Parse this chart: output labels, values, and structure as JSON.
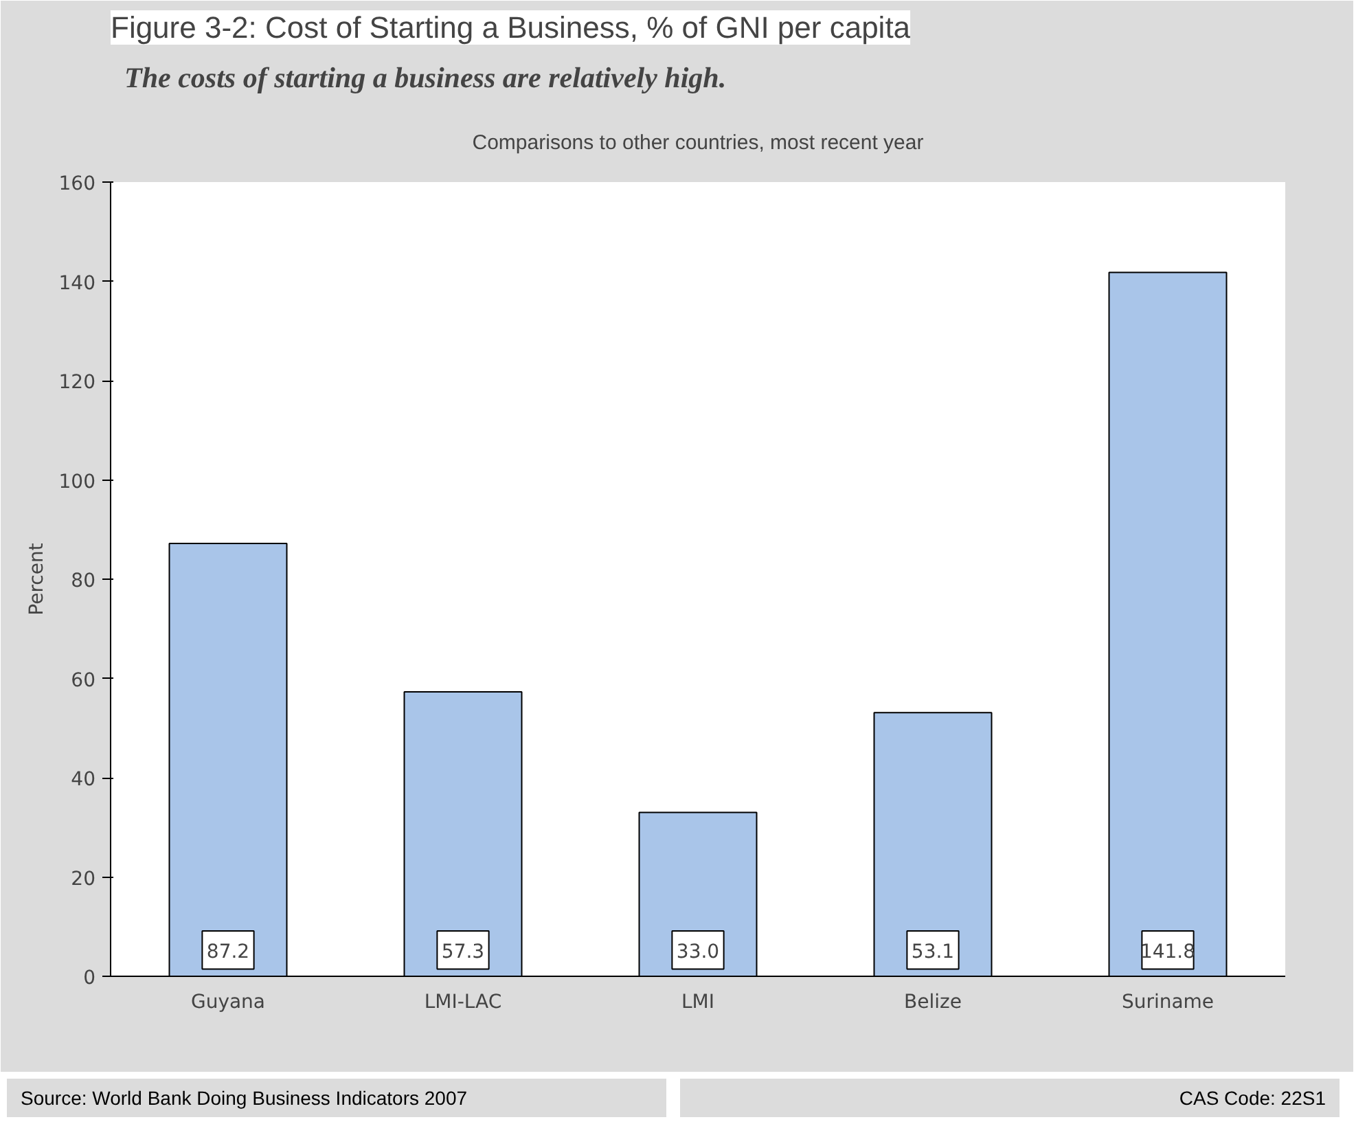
{
  "chart_data": {
    "type": "bar",
    "title": "Figure 3-2: Cost of Starting a Business, % of GNI per capita",
    "subtitle": "The costs of starting a business are relatively high.",
    "annotations": [
      "Comparisons to other countries, most recent year",
      "Source: World Bank Doing Business Indicators 2007",
      "CAS Code: 22S1"
    ],
    "ylabel": "Percent",
    "categories": [
      "Guyana",
      "LMI-LAC",
      "LMI",
      "Belize",
      "Suriname"
    ],
    "values": [
      87.2,
      57.3,
      33.0,
      53.1,
      141.8
    ],
    "value_labels": [
      "87.2",
      "57.3",
      "33.0",
      "53.1",
      "141.8"
    ],
    "color": "#a9c5e9",
    "ylim": [
      0,
      160
    ],
    "yticks": [
      0,
      20,
      40,
      60,
      80,
      100,
      120,
      140,
      160
    ],
    "grid": false
  }
}
